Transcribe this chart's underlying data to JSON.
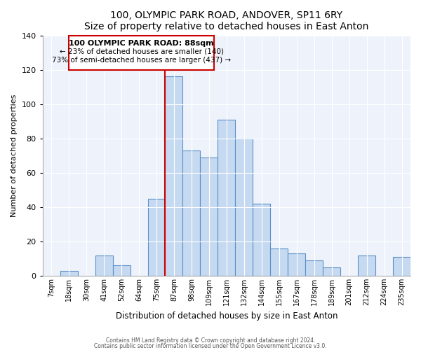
{
  "title": "100, OLYMPIC PARK ROAD, ANDOVER, SP11 6RY",
  "subtitle": "Size of property relative to detached houses in East Anton",
  "xlabel": "Distribution of detached houses by size in East Anton",
  "ylabel": "Number of detached properties",
  "bin_labels": [
    "7sqm",
    "18sqm",
    "30sqm",
    "41sqm",
    "52sqm",
    "64sqm",
    "75sqm",
    "87sqm",
    "98sqm",
    "109sqm",
    "121sqm",
    "132sqm",
    "144sqm",
    "155sqm",
    "167sqm",
    "178sqm",
    "189sqm",
    "201sqm",
    "212sqm",
    "224sqm",
    "235sqm"
  ],
  "bar_values": [
    0,
    3,
    0,
    12,
    6,
    0,
    45,
    116,
    73,
    69,
    91,
    80,
    42,
    16,
    13,
    9,
    5,
    0,
    12,
    0,
    11
  ],
  "bar_color": "#c5d9f1",
  "bar_edge_color": "#5b8fc8",
  "marker_color": "#cc0000",
  "ylim": [
    0,
    140
  ],
  "yticks": [
    0,
    20,
    40,
    60,
    80,
    100,
    120,
    140
  ],
  "annotation_title": "100 OLYMPIC PARK ROAD: 88sqm",
  "annotation_line1": "← 23% of detached houses are smaller (140)",
  "annotation_line2": "73% of semi-detached houses are larger (437) →",
  "footer1": "Contains HM Land Registry data © Crown copyright and database right 2024.",
  "footer2": "Contains public sector information licensed under the Open Government Licence v3.0.",
  "bg_color": "#eef3fb"
}
